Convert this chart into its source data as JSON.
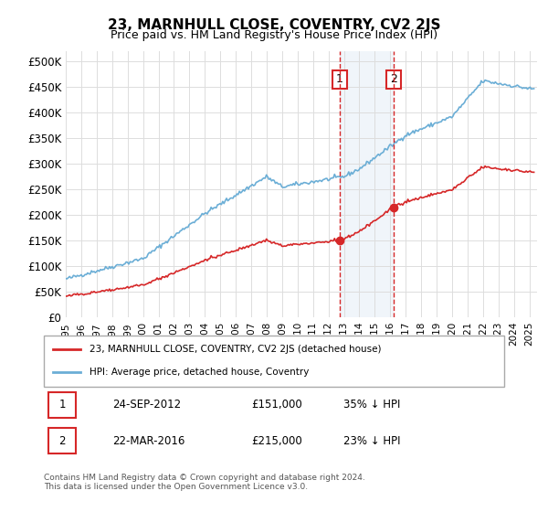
{
  "title": "23, MARNHULL CLOSE, COVENTRY, CV2 2JS",
  "subtitle": "Price paid vs. HM Land Registry's House Price Index (HPI)",
  "ylabel_ticks": [
    "£0",
    "£50K",
    "£100K",
    "£150K",
    "£200K",
    "£250K",
    "£300K",
    "£350K",
    "£400K",
    "£450K",
    "£500K"
  ],
  "ytick_values": [
    0,
    50000,
    100000,
    150000,
    200000,
    250000,
    300000,
    350000,
    400000,
    450000,
    500000
  ],
  "ylim": [
    0,
    520000
  ],
  "xlim_start": 1995.0,
  "xlim_end": 2025.5,
  "sale1_x": 2012.73,
  "sale1_y": 151000,
  "sale1_label": "1",
  "sale2_x": 2016.22,
  "sale2_y": 215000,
  "sale2_label": "2",
  "vline1_x": 2012.73,
  "vline2_x": 2016.22,
  "shade_x1": 2012.73,
  "shade_x2": 2016.22,
  "hpi_color": "#6baed6",
  "price_color": "#d62728",
  "sale_dot_color": "#d62728",
  "vline_color": "#d62728",
  "shade_color": "#c6dbef",
  "legend_label1": "23, MARNHULL CLOSE, COVENTRY, CV2 2JS (detached house)",
  "legend_label2": "HPI: Average price, detached house, Coventry",
  "table_row1": [
    "1",
    "24-SEP-2012",
    "£151,000",
    "35% ↓ HPI"
  ],
  "table_row2": [
    "2",
    "22-MAR-2016",
    "£215,000",
    "23% ↓ HPI"
  ],
  "footnote": "Contains HM Land Registry data © Crown copyright and database right 2024.\nThis data is licensed under the Open Government Licence v3.0.",
  "background_color": "#ffffff",
  "grid_color": "#dddddd"
}
